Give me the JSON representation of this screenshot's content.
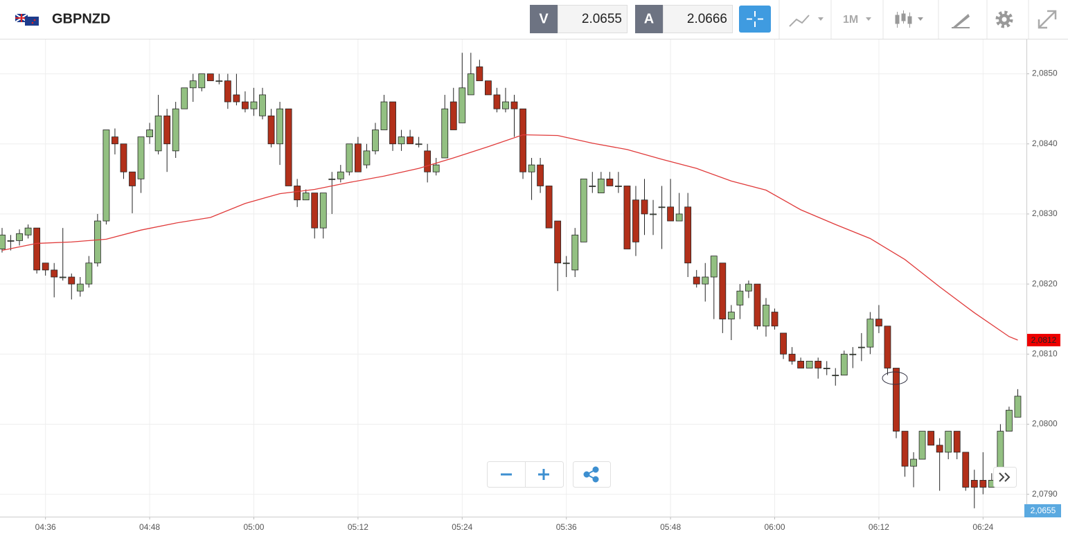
{
  "header": {
    "symbol": "GBPNZD",
    "bid_tag": "V",
    "bid": "2.0655",
    "ask_tag": "A",
    "ask": "2.0666",
    "timeframe": "1M"
  },
  "chart_data": {
    "type": "candlestick",
    "title": "GBPNZD",
    "x": [
      "04:31",
      "04:32",
      "04:33",
      "04:34",
      "04:35",
      "04:36",
      "04:37",
      "04:38",
      "04:39",
      "04:40",
      "04:41",
      "04:42",
      "04:43",
      "04:44",
      "04:45",
      "04:46",
      "04:47",
      "04:48",
      "04:49",
      "04:50",
      "04:51",
      "04:52",
      "04:53",
      "04:54",
      "04:55",
      "04:56",
      "04:57",
      "04:58",
      "04:59",
      "05:00",
      "05:01",
      "05:02",
      "05:03",
      "05:04",
      "05:05",
      "05:06",
      "05:07",
      "05:08",
      "05:09",
      "05:10",
      "05:11",
      "05:12",
      "05:13",
      "05:14",
      "05:15",
      "05:16",
      "05:17",
      "05:18",
      "05:19",
      "05:20",
      "05:21",
      "05:22",
      "05:23",
      "05:24",
      "05:25",
      "05:26",
      "05:27",
      "05:28",
      "05:29",
      "05:30",
      "05:31",
      "05:32",
      "05:33",
      "05:34",
      "05:35",
      "05:36",
      "05:37",
      "05:38",
      "05:39",
      "05:40",
      "05:41",
      "05:42",
      "05:43",
      "05:44",
      "05:45",
      "05:46",
      "05:47",
      "05:48",
      "05:49",
      "05:50",
      "05:51",
      "05:52",
      "05:53",
      "05:54",
      "05:55",
      "05:56",
      "05:57",
      "05:58",
      "05:59",
      "06:00",
      "06:01",
      "06:02",
      "06:03",
      "06:04",
      "06:05",
      "06:06",
      "06:07",
      "06:08",
      "06:09",
      "06:10",
      "06:11",
      "06:12",
      "06:13",
      "06:14",
      "06:15",
      "06:16",
      "06:17",
      "06:18",
      "06:19",
      "06:20",
      "06:21",
      "06:22",
      "06:23",
      "06:24",
      "06:25",
      "06:26",
      "06:27",
      "06:28"
    ],
    "open": [
      2.0825,
      2.08262,
      2.08262,
      2.0827,
      2.0828,
      2.0823,
      2.0822,
      2.0821,
      2.0821,
      2.0819,
      2.082,
      2.0823,
      2.0829,
      2.0841,
      2.084,
      2.0836,
      2.0835,
      2.0841,
      2.0839,
      2.0844,
      2.0839,
      2.0845,
      2.0848,
      2.0848,
      2.085,
      2.0849,
      2.0849,
      2.0847,
      2.0846,
      2.0845,
      2.0844,
      2.0844,
      2.084,
      2.0845,
      2.0834,
      2.0832,
      2.0833,
      2.0828,
      2.0835,
      2.0835,
      2.0836,
      2.084,
      2.0837,
      2.0839,
      2.0842,
      2.0846,
      2.084,
      2.0841,
      2.084,
      2.0839,
      2.0836,
      2.0838,
      2.0846,
      2.0843,
      2.0847,
      2.0851,
      2.0849,
      2.0847,
      2.0845,
      2.0846,
      2.0845,
      2.0836,
      2.0837,
      2.0834,
      2.0829,
      2.0823,
      2.0822,
      2.0826,
      2.0834,
      2.0833,
      2.0835,
      2.0834,
      2.0834,
      2.0832,
      2.0832,
      2.083,
      2.0831,
      2.0831,
      2.0829,
      2.0831,
      2.0821,
      2.082,
      2.0821,
      2.0823,
      2.0815,
      2.0817,
      2.0819,
      2.082,
      2.0814,
      2.0816,
      2.0813,
      2.081,
      2.0809,
      2.0808,
      2.0809,
      2.0808,
      2.0807,
      2.0807,
      2.081,
      2.0811,
      2.0811,
      2.0815,
      2.0814,
      2.0808,
      2.0799,
      2.0794,
      2.0795,
      2.0799,
      2.0797,
      2.0796,
      2.0799,
      2.0796,
      2.0792,
      2.0792,
      2.0791,
      2.0792,
      2.0799,
      2.0801
    ],
    "high": [
      2.0828,
      2.0827,
      2.08278,
      2.08285,
      2.0828,
      2.0823,
      2.0823,
      2.0828,
      2.08215,
      2.0821,
      2.0824,
      2.083,
      2.0842,
      2.08422,
      2.084,
      2.0836,
      2.0841,
      2.0843,
      2.0847,
      2.0845,
      2.0846,
      2.0848,
      2.085,
      2.085,
      2.085,
      2.085,
      2.085,
      2.085,
      2.08475,
      2.0848,
      2.0848,
      2.0845,
      2.0846,
      2.0845,
      2.0835,
      2.08335,
      2.0833,
      2.0833,
      2.0836,
      2.0837,
      2.084,
      2.0841,
      2.084,
      2.0843,
      2.0847,
      2.0846,
      2.0842,
      2.0842,
      2.0841,
      2.084,
      2.0838,
      2.0847,
      2.0848,
      2.0853,
      2.0853,
      2.0852,
      2.0849,
      2.0848,
      2.0848,
      2.0847,
      2.0845,
      2.0838,
      2.0838,
      2.0834,
      2.0829,
      2.0824,
      2.0828,
      2.0835,
      2.0836,
      2.0836,
      2.0836,
      2.0836,
      2.0834,
      2.0834,
      2.0835,
      2.0832,
      2.0834,
      2.0835,
      2.0833,
      2.0833,
      2.0822,
      2.0823,
      2.0824,
      2.0823,
      2.0817,
      2.082,
      2.08205,
      2.082,
      2.0818,
      2.08165,
      2.0813,
      2.0811,
      2.08095,
      2.0809,
      2.08095,
      2.0809,
      2.0808,
      2.08105,
      2.0811,
      2.0813,
      2.0816,
      2.0817,
      2.0814,
      2.0808,
      2.0799,
      2.0796,
      2.0799,
      2.0799,
      2.0798,
      2.0799,
      2.0799,
      2.0796,
      2.07935,
      2.0796,
      2.0793,
      2.08,
      2.08025,
      2.0805
    ],
    "low": [
      2.08245,
      2.08248,
      2.08255,
      2.08265,
      2.08215,
      2.08212,
      2.08181,
      2.08205,
      2.08178,
      2.08182,
      2.08195,
      2.08225,
      2.08285,
      2.08385,
      2.0835,
      2.08301,
      2.0833,
      2.084,
      2.08385,
      2.0836,
      2.0838,
      2.0845,
      2.0846,
      2.08475,
      2.0849,
      2.08485,
      2.0845,
      2.08455,
      2.08445,
      2.0844,
      2.08435,
      2.08395,
      2.0837,
      2.0834,
      2.0831,
      2.0832,
      2.08265,
      2.08265,
      2.083,
      2.08345,
      2.08355,
      2.0836,
      2.08365,
      2.08385,
      2.0842,
      2.0839,
      2.0839,
      2.084,
      2.08395,
      2.08345,
      2.08355,
      2.0838,
      2.0842,
      2.0843,
      2.0847,
      2.0849,
      2.0847,
      2.08445,
      2.08445,
      2.0841,
      2.0835,
      2.0832,
      2.0833,
      2.0828,
      2.0819,
      2.0821,
      2.0821,
      2.0826,
      2.0833,
      2.0833,
      2.0834,
      2.0833,
      2.0825,
      2.0824,
      2.0827,
      2.0827,
      2.0825,
      2.0829,
      2.0829,
      2.0821,
      2.08195,
      2.08175,
      2.0815,
      2.0813,
      2.0812,
      2.0815,
      2.0818,
      2.08135,
      2.08125,
      2.08135,
      2.08093,
      2.08085,
      2.0808,
      2.0808,
      2.08065,
      2.0807,
      2.08055,
      2.0807,
      2.0808,
      2.0809,
      2.081,
      2.0813,
      2.0807,
      2.0798,
      2.07925,
      2.0791,
      2.0795,
      2.0797,
      2.07905,
      2.0795,
      2.0795,
      2.07905,
      2.0788,
      2.079,
      2.0791,
      2.0792,
      2.0799,
      2.0801
    ],
    "close": [
      2.0827,
      2.08262,
      2.08272,
      2.0828,
      2.0822,
      2.0822,
      2.0821,
      2.0821,
      2.082,
      2.082,
      2.0823,
      2.0829,
      2.0842,
      2.084,
      2.0836,
      2.0834,
      2.0841,
      2.0842,
      2.0844,
      2.084,
      2.0845,
      2.0848,
      2.0849,
      2.085,
      2.0849,
      2.0849,
      2.0846,
      2.0846,
      2.0845,
      2.0846,
      2.0847,
      2.084,
      2.0845,
      2.0834,
      2.0832,
      2.0833,
      2.0828,
      2.0833,
      2.0835,
      2.0836,
      2.084,
      2.0836,
      2.0839,
      2.0842,
      2.0846,
      2.084,
      2.0841,
      2.084,
      2.084,
      2.0836,
      2.0837,
      2.0845,
      2.0842,
      2.0848,
      2.085,
      2.0849,
      2.0847,
      2.0845,
      2.0846,
      2.0845,
      2.0836,
      2.0837,
      2.0834,
      2.0828,
      2.0823,
      2.0823,
      2.0827,
      2.0835,
      2.0834,
      2.0835,
      2.0834,
      2.0834,
      2.0825,
      2.0826,
      2.083,
      2.083,
      2.0831,
      2.0829,
      2.083,
      2.0823,
      2.082,
      2.0821,
      2.0824,
      2.0815,
      2.0816,
      2.0819,
      2.082,
      2.0814,
      2.0817,
      2.0814,
      2.081,
      2.0809,
      2.0808,
      2.0809,
      2.0808,
      2.0808,
      2.0807,
      2.081,
      2.081,
      2.0811,
      2.0815,
      2.0814,
      2.0808,
      2.0799,
      2.0794,
      2.0795,
      2.0799,
      2.0797,
      2.0796,
      2.0799,
      2.0796,
      2.0791,
      2.0791,
      2.0791,
      2.0792,
      2.0799,
      2.0802,
      2.0804
    ],
    "up_color": "#93c082",
    "down_color": "#b2301a",
    "moving_average": {
      "type": "line",
      "color": "#e03a3a",
      "x": [
        "04:31",
        "04:35",
        "04:39",
        "04:43",
        "04:47",
        "04:51",
        "04:55",
        "04:59",
        "05:03",
        "05:07",
        "05:11",
        "05:15",
        "05:19",
        "05:23",
        "05:27",
        "05:31",
        "05:35",
        "05:39",
        "05:43",
        "05:47",
        "05:51",
        "05:55",
        "05:59",
        "06:03",
        "06:07",
        "06:11",
        "06:15",
        "06:19",
        "06:23",
        "06:27",
        "06:28"
      ],
      "values": [
        2.08248,
        2.08258,
        2.0826,
        2.08264,
        2.08277,
        2.08287,
        2.08295,
        2.08315,
        2.08329,
        2.08335,
        2.08345,
        2.08354,
        2.08365,
        2.0838,
        2.08396,
        2.08413,
        2.08412,
        2.08401,
        2.08392,
        2.08378,
        2.08365,
        2.08347,
        2.08334,
        2.08306,
        2.08285,
        2.08265,
        2.08235,
        2.08196,
        2.08159,
        2.08125,
        2.0812
      ]
    },
    "price_marker": {
      "value": 2.0812,
      "label": "2,0812"
    },
    "bid_marker": "2,0655",
    "xlim": [
      "04:31",
      "06:29"
    ],
    "xticks": [
      "04:36",
      "04:48",
      "05:00",
      "05:12",
      "05:24",
      "05:36",
      "05:48",
      "06:00",
      "06:12",
      "06:24"
    ],
    "ylim": [
      2.07868,
      2.08549
    ],
    "yticks": [
      {
        "value": 2.079,
        "label": "2,0790"
      },
      {
        "value": 2.08,
        "label": "2,0800"
      },
      {
        "value": 2.081,
        "label": "2,0810"
      },
      {
        "value": 2.082,
        "label": "2,0820"
      },
      {
        "value": 2.083,
        "label": "2,0830"
      },
      {
        "value": 2.084,
        "label": "2,0840"
      },
      {
        "value": 2.085,
        "label": "2,0850"
      }
    ],
    "grid": true
  }
}
